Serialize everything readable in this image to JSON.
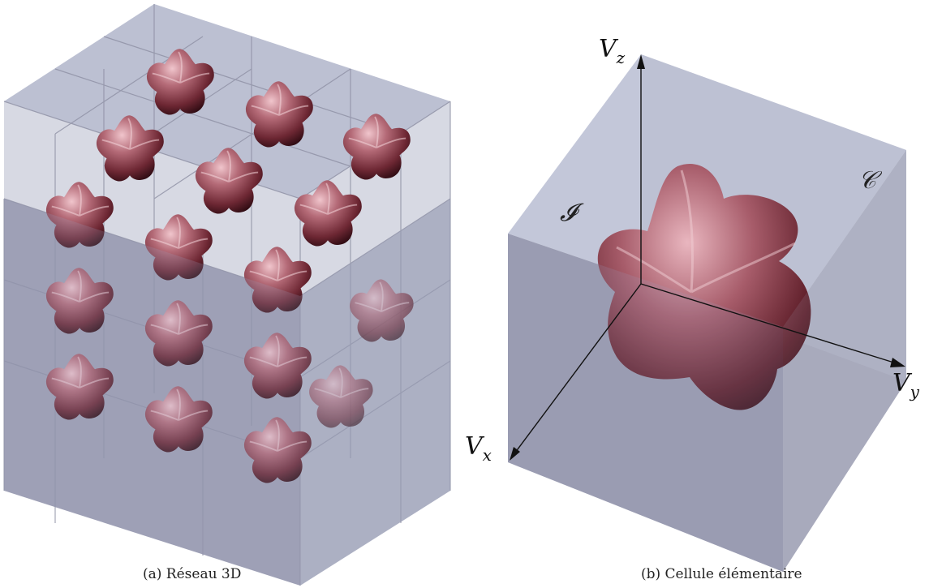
{
  "panels": [
    {
      "id": "a",
      "caption": "(a)  Réseau 3D"
    },
    {
      "id": "b",
      "caption": "(b)  Cellule élémentaire"
    }
  ],
  "axes": {
    "z": {
      "main": "V",
      "sub": "z"
    },
    "y": {
      "main": "V",
      "sub": "y"
    },
    "x": {
      "main": "V",
      "sub": "x"
    }
  },
  "set_labels": {
    "left": "𝓘",
    "right": "𝒞"
  },
  "colors": {
    "cube_top": "#c3c7d9",
    "cube_left": "#9a9caf",
    "cube_right": "#a9abbd",
    "particle": "#9a4f5c",
    "particle_highlight": "#e6b3bd",
    "particle_shadow": "#3e1018"
  }
}
